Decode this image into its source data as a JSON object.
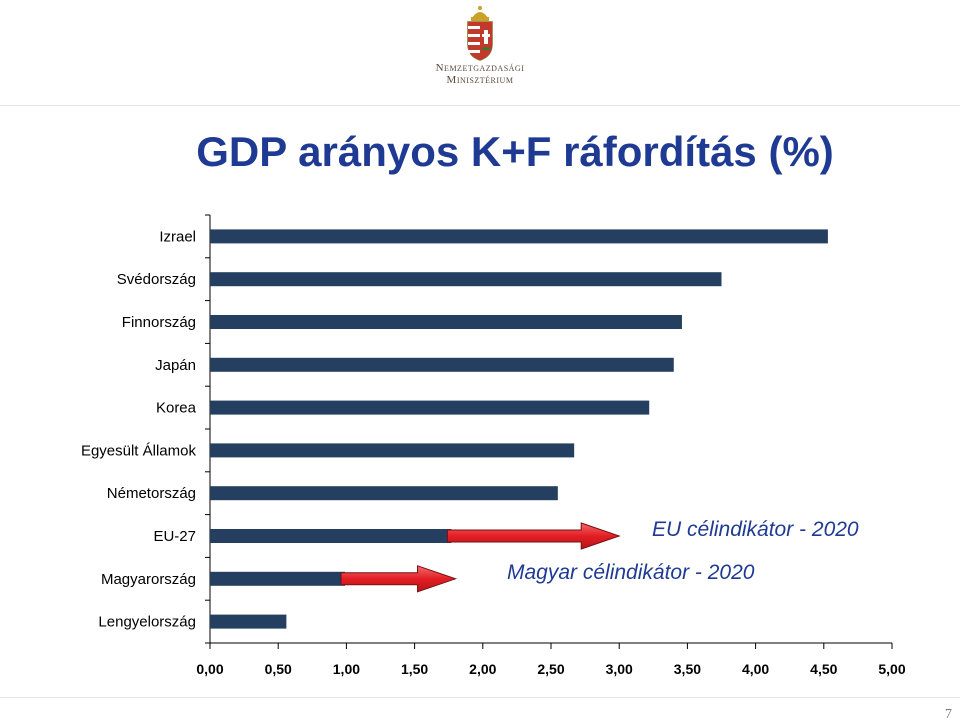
{
  "header": {
    "ministry_line1": "Nemzetgazdasági",
    "ministry_line2": "Minisztérium"
  },
  "title": "GDP arányos K+F ráfordítás (%)",
  "annotations": {
    "eu_target": "EU célindikátor - 2020",
    "hu_target": "Magyar célindikátor - 2020"
  },
  "page_number": "7",
  "colors": {
    "bar": "#243F60",
    "title": "#1F3A93",
    "arrow": "#E31E24"
  },
  "chart_data": {
    "type": "bar",
    "orientation": "horizontal",
    "title": "GDP arányos K+F ráfordítás (%)",
    "categories": [
      "Izrael",
      "Svédország",
      "Finnország",
      "Japán",
      "Korea",
      "Egyesült Államok",
      "Németország",
      "EU-27",
      "Magyarország",
      "Lengyelország"
    ],
    "values": [
      4.53,
      3.75,
      3.46,
      3.4,
      3.22,
      2.67,
      2.55,
      1.77,
      0.99,
      0.56
    ],
    "xlim": [
      0,
      5
    ],
    "x_ticks": [
      "0,00",
      "0,50",
      "1,00",
      "1,50",
      "2,00",
      "2,50",
      "3,00",
      "3,50",
      "4,00",
      "4,50",
      "5,00"
    ],
    "targets": [
      {
        "label": "EU célindikátor - 2020",
        "category": "EU-27",
        "from": 1.77,
        "to": 3.0
      },
      {
        "label": "Magyar célindikátor - 2020",
        "category": "Magyarország",
        "from": 0.99,
        "to": 1.8
      }
    ],
    "grid": false,
    "legend": "none"
  }
}
